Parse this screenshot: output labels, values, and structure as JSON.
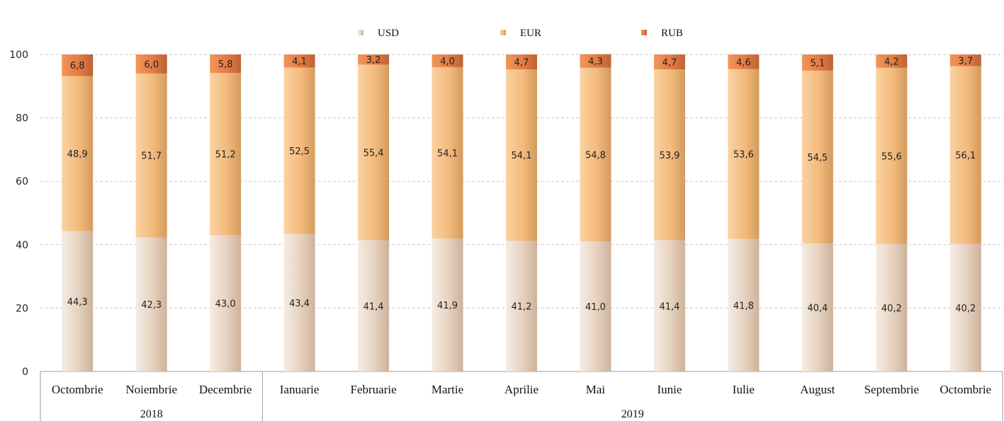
{
  "chart_data": {
    "type": "bar",
    "stacked": true,
    "categories": [
      "Octombrie",
      "Noiembrie",
      "Decembrie",
      "Ianuarie",
      "Februarie",
      "Martie",
      "Aprilie",
      "Mai",
      "Iunie",
      "Iulie",
      "August",
      "Septembrie",
      "Octombrie"
    ],
    "groups": [
      {
        "label": "2018",
        "from": 0,
        "to": 2
      },
      {
        "label": "2019",
        "from": 3,
        "to": 12
      }
    ],
    "series": [
      {
        "name": "USD",
        "values": [
          "44,3",
          "42,3",
          "43,0",
          "43,4",
          "41,4",
          "41,9",
          "41,2",
          "41,0",
          "41,4",
          "41,8",
          "40,4",
          "40,2",
          "40,2"
        ],
        "color": "#e3cdb7"
      },
      {
        "name": "EUR",
        "values": [
          "48,9",
          "51,7",
          "51,2",
          "52,5",
          "55,4",
          "54,1",
          "54,1",
          "54,8",
          "53,9",
          "53,6",
          "54,5",
          "55,6",
          "56,1"
        ],
        "color": "#f2b978"
      },
      {
        "name": "RUB",
        "values": [
          "6,8",
          "6,0",
          "5,8",
          "4,1",
          "3,2",
          "4,0",
          "4,7",
          "4,3",
          "4,7",
          "4,6",
          "5,1",
          "4,2",
          "3,7"
        ],
        "color": "#e8824a"
      }
    ],
    "yticks": [
      "0",
      "20",
      "40",
      "60",
      "80",
      "100"
    ],
    "ylim": [
      0,
      100
    ],
    "grid": true,
    "legend": "top-center",
    "title": "",
    "xlabel": "",
    "ylabel": ""
  }
}
